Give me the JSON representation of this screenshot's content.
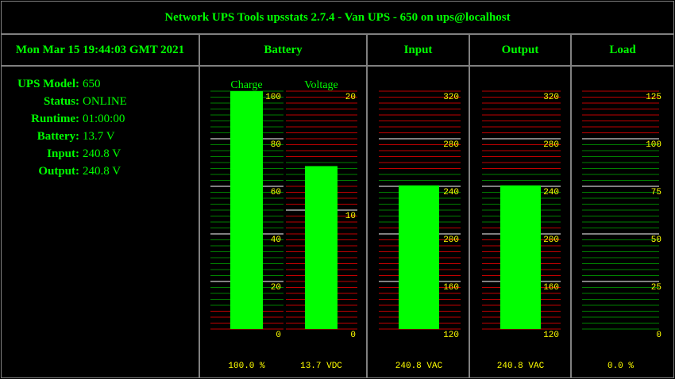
{
  "header": {
    "title": "Network UPS Tools upsstats 2.7.4 - Van UPS - 650 on ups@localhost"
  },
  "date": "Mon Mar 15 19:44:03 GMT 2021",
  "columns": [
    "Battery",
    "Input",
    "Output",
    "Load"
  ],
  "info": [
    {
      "label": "UPS Model:",
      "value": "650"
    },
    {
      "label": "Status:",
      "value": "ONLINE"
    },
    {
      "label": "Runtime:",
      "value": "01:00:00"
    },
    {
      "label": "Battery:",
      "value": "13.7 V"
    },
    {
      "label": "Input:",
      "value": "240.8 V"
    },
    {
      "label": "Output:",
      "value": "240.8 V"
    }
  ],
  "gauges": [
    {
      "name": "Charge",
      "value": 100.0,
      "value_label": "100.0 %",
      "ylim": [
        0,
        100
      ],
      "yticks": [
        0,
        20,
        40,
        60,
        80,
        100
      ],
      "ok_range": [
        10,
        100
      ],
      "color": "#00ff00"
    },
    {
      "name": "Voltage",
      "value": 13.7,
      "value_label": "13.7 VDC",
      "ylim": [
        0,
        20
      ],
      "yticks": [
        0,
        10,
        20
      ],
      "ok_range": [
        12.5,
        14
      ],
      "color": "#00ff00"
    },
    {
      "value": 240.8,
      "value_label": "240.8 VAC",
      "ylim": [
        120,
        320
      ],
      "yticks": [
        120,
        160,
        200,
        240,
        280,
        320
      ],
      "ok_range": [
        210,
        250
      ],
      "color": "#00ff00"
    },
    {
      "value": 240.8,
      "value_label": "240.8 VAC",
      "ylim": [
        120,
        320
      ],
      "yticks": [
        120,
        160,
        200,
        240,
        280,
        320
      ],
      "ok_range": [
        210,
        250
      ],
      "color": "#00ff00"
    },
    {
      "value": 0.0,
      "value_label": "0.0 %",
      "ylim": [
        0,
        125
      ],
      "yticks": [
        0,
        25,
        50,
        75,
        100,
        125
      ],
      "ok_range": [
        0,
        100
      ],
      "color": "#00ff00"
    }
  ]
}
